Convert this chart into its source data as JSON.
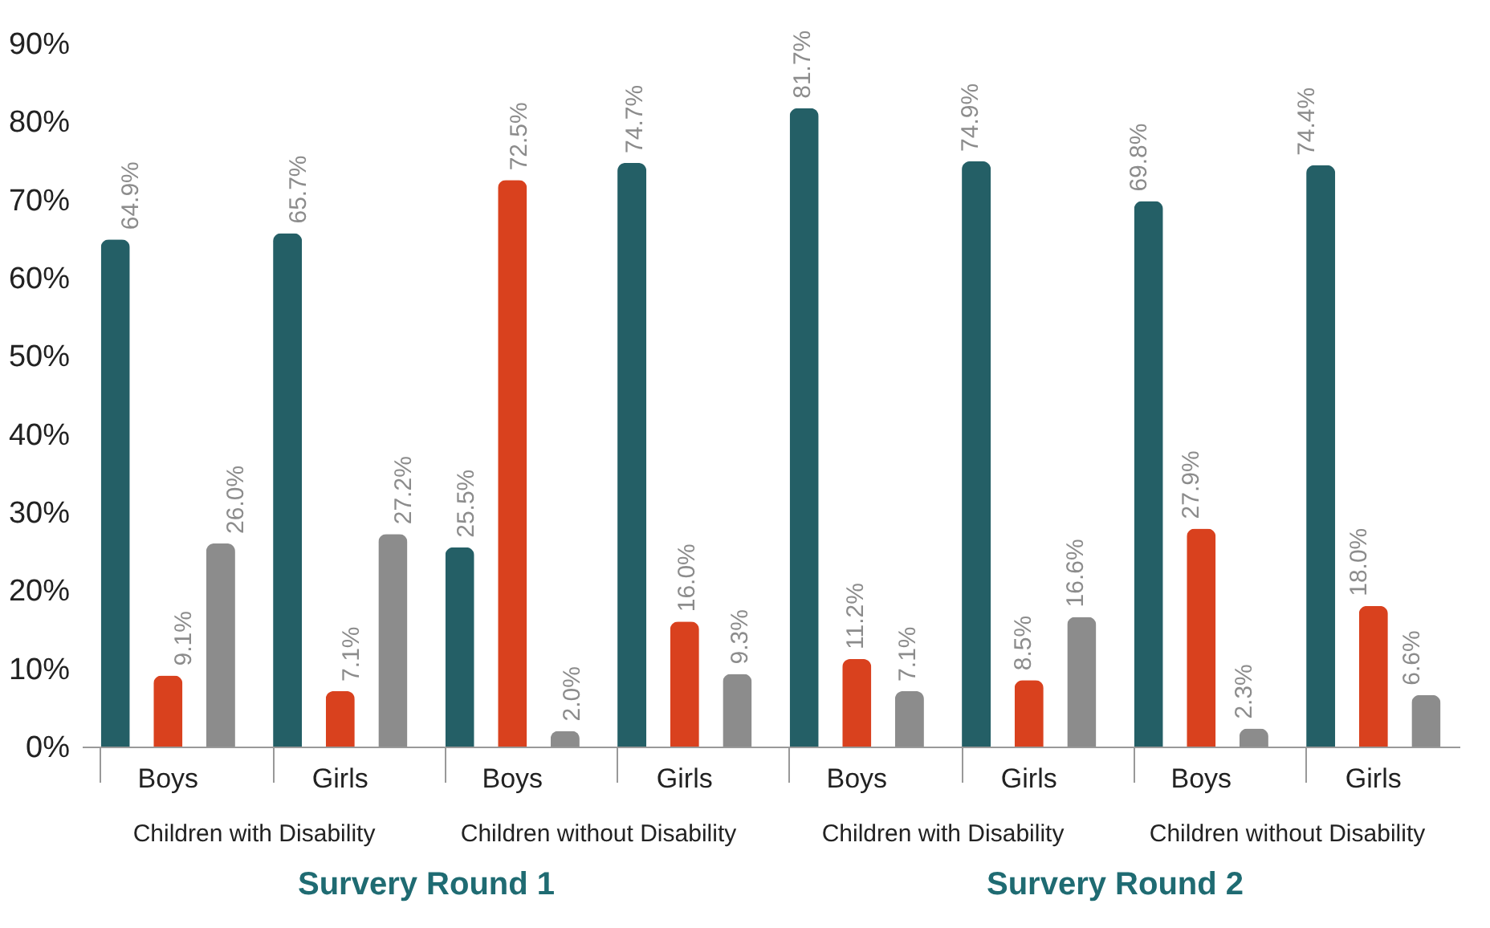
{
  "chart_data": {
    "type": "bar",
    "categories": [
      "Boys",
      "Girls",
      "Boys",
      "Girls",
      "Boys",
      "Girls",
      "Boys",
      "Girls"
    ],
    "series": [
      {
        "color": "#245f66",
        "values": [
          64.9,
          65.7,
          25.5,
          74.7,
          81.7,
          74.9,
          69.8,
          74.4
        ],
        "value_labels": [
          "64.9%",
          "65.7%",
          "25.5%",
          "74.7%",
          "81.7%",
          "74.9%",
          "69.8%",
          "74.4%"
        ]
      },
      {
        "color": "#d9411e",
        "values": [
          9.1,
          7.1,
          72.5,
          16.0,
          11.2,
          8.5,
          27.9,
          18.0
        ],
        "value_labels": [
          "9.1%",
          "7.1%",
          "72.5%",
          "16.0%",
          "11.2%",
          "8.5%",
          "27.9%",
          "18.0%"
        ]
      },
      {
        "color": "#8c8c8c",
        "values": [
          26.0,
          27.2,
          2.0,
          9.3,
          7.1,
          16.6,
          2.3,
          6.6
        ],
        "value_labels": [
          "26.0%",
          "27.2%",
          "2.0%",
          "9.3%",
          "7.1%",
          "16.6%",
          "2.3%",
          "6.6%"
        ]
      }
    ],
    "ylim": [
      0,
      90
    ],
    "yticks": [
      {
        "value": 0,
        "label": "0%"
      },
      {
        "value": 10,
        "label": "10%"
      },
      {
        "value": 20,
        "label": "20%"
      },
      {
        "value": 30,
        "label": "30%"
      },
      {
        "value": 40,
        "label": "40%"
      },
      {
        "value": 50,
        "label": "50%"
      },
      {
        "value": 60,
        "label": "60%"
      },
      {
        "value": 70,
        "label": "70%"
      },
      {
        "value": 80,
        "label": "80%"
      },
      {
        "value": 90,
        "label": "90%"
      }
    ],
    "grid": false,
    "annotations": [
      "Children with Disability",
      "Children without Disability",
      "Children with Disability",
      "Children without Disability",
      "Survery Round 1",
      "Survery Round 2"
    ]
  }
}
